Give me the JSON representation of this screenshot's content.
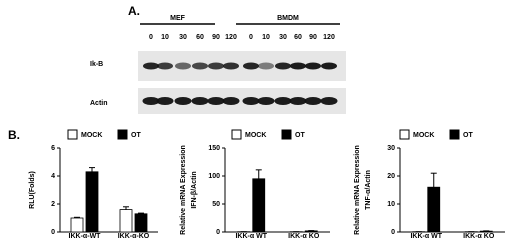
{
  "blot": {
    "label": "A.",
    "groups": [
      {
        "name": "MEF",
        "lanes": [
          "0",
          "10",
          "30",
          "60",
          "90",
          "120"
        ]
      },
      {
        "name": "BMDM",
        "lanes": [
          "0",
          "10",
          "30",
          "60",
          "90",
          "120"
        ]
      }
    ],
    "rows": [
      "Ik-B",
      "Actin"
    ]
  },
  "panel_b_label": "B.",
  "chart_data": [
    {
      "type": "bar",
      "ylabel": [
        "RLU(Folds)"
      ],
      "categories": [
        "IKK-α-WT",
        "IKK-α-KO"
      ],
      "series": [
        {
          "name": "MOCK",
          "color": "#ffffff",
          "values": [
            1.0,
            1.6
          ],
          "errors": [
            0.05,
            0.2
          ]
        },
        {
          "name": "OT",
          "color": "#000000",
          "values": [
            4.3,
            1.3
          ],
          "errors": [
            0.3,
            0.05
          ]
        }
      ],
      "ylim": [
        0,
        6
      ],
      "yticks": [
        0,
        2,
        4,
        6
      ]
    },
    {
      "type": "bar",
      "ylabel": [
        "Relative mRNA Expression",
        "IFN-β/Actin"
      ],
      "categories": [
        "IKK-α WT",
        "IKK-α KO"
      ],
      "series": [
        {
          "name": "MOCK",
          "color": "#ffffff",
          "values": [
            0.5,
            0.5
          ],
          "errors": [
            0,
            0
          ]
        },
        {
          "name": "OT",
          "color": "#000000",
          "values": [
            95,
            2
          ],
          "errors": [
            16,
            0.5
          ]
        }
      ],
      "ylim": [
        0,
        150
      ],
      "yticks": [
        0,
        50,
        100,
        150
      ]
    },
    {
      "type": "bar",
      "ylabel": [
        "Relative mRNA Expression",
        "TNF-α/Actin"
      ],
      "categories": [
        "IKK-α WT",
        "IKK-α KO"
      ],
      "series": [
        {
          "name": "MOCK",
          "color": "#ffffff",
          "values": [
            0.1,
            0.1
          ],
          "errors": [
            0,
            0
          ]
        },
        {
          "name": "OT",
          "color": "#000000",
          "values": [
            16,
            0.3
          ],
          "errors": [
            5,
            0.1
          ]
        }
      ],
      "ylim": [
        0,
        30
      ],
      "yticks": [
        0,
        10,
        20,
        30
      ]
    }
  ]
}
